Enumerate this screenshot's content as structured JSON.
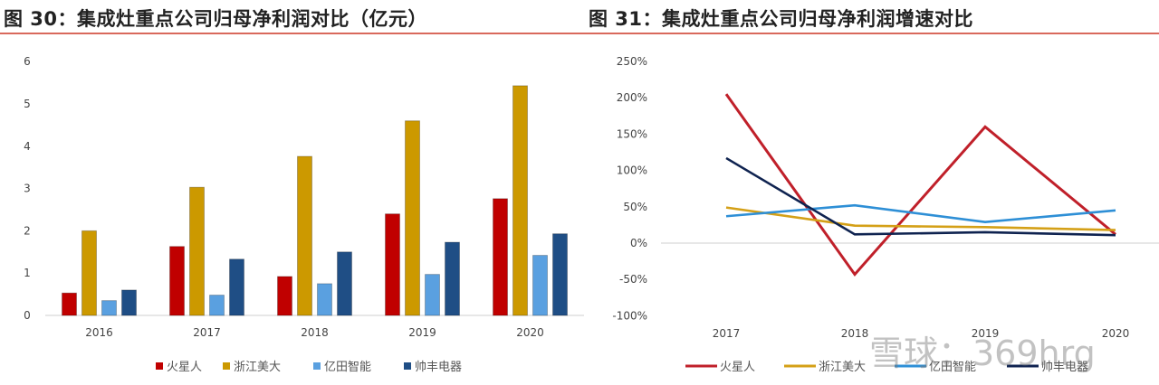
{
  "titles": {
    "left": "图 30：集成灶重点公司归母净利润对比（亿元）",
    "right": "图 31：集成灶重点公司归母净利润增速对比"
  },
  "watermark": "雪球：369hrg",
  "chart_data": [
    {
      "type": "bar",
      "title": "图 30：集成灶重点公司归母净利润对比（亿元）",
      "xlabel": "",
      "ylabel": "亿元",
      "categories": [
        "2016",
        "2017",
        "2018",
        "2019",
        "2020"
      ],
      "ylim": [
        0,
        6
      ],
      "yticks": [
        "0",
        "1",
        "2",
        "3",
        "4",
        "5",
        "6"
      ],
      "grid": false,
      "legend_position": "bottom",
      "series": [
        {
          "name": "火星人",
          "color": "#c00000",
          "values": [
            0.53,
            1.63,
            0.92,
            2.4,
            2.76
          ]
        },
        {
          "name": "浙江美大",
          "color": "#cc9900",
          "values": [
            2.0,
            3.03,
            3.76,
            4.6,
            5.43
          ]
        },
        {
          "name": "亿田智能",
          "color": "#5aa0e0",
          "values": [
            0.35,
            0.48,
            0.75,
            0.97,
            1.42
          ]
        },
        {
          "name": "帅丰电器",
          "color": "#1f4e85",
          "values": [
            0.6,
            1.33,
            1.5,
            1.73,
            1.93
          ]
        }
      ]
    },
    {
      "type": "line",
      "title": "图 31：集成灶重点公司归母净利润增速对比",
      "xlabel": "",
      "ylabel": "",
      "categories": [
        "2017",
        "2018",
        "2019",
        "2020"
      ],
      "ylim": [
        -100,
        250
      ],
      "yticks": [
        "-100%",
        "-50%",
        "0%",
        "50%",
        "100%",
        "150%",
        "200%",
        "250%"
      ],
      "grid": false,
      "legend_position": "bottom",
      "series": [
        {
          "name": "火星人",
          "color": "#c0202a",
          "values": [
            205,
            -43,
            160,
            12
          ]
        },
        {
          "name": "浙江美大",
          "color": "#d4a017",
          "values": [
            49,
            24,
            22,
            18
          ]
        },
        {
          "name": "亿田智能",
          "color": "#2e8fd6",
          "values": [
            37,
            52,
            29,
            45
          ]
        },
        {
          "name": "帅丰电器",
          "color": "#0f2350",
          "values": [
            117,
            12,
            15,
            11
          ]
        }
      ]
    }
  ]
}
